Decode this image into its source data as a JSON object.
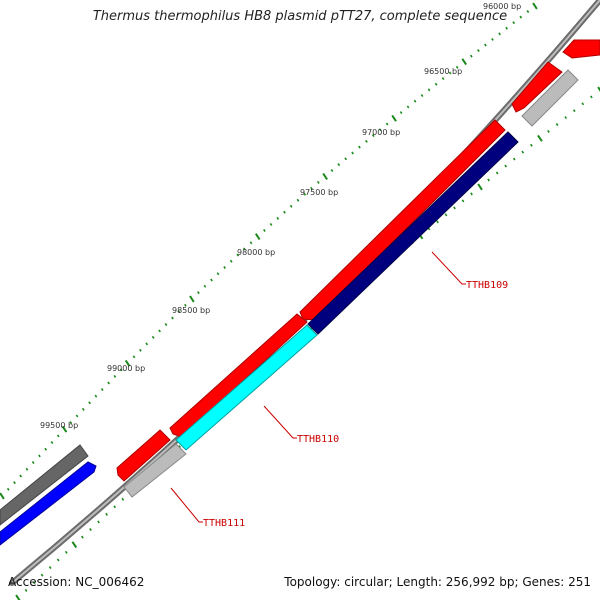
{
  "title": "Thermus thermophilus HB8 plasmid pTT27, complete sequence",
  "footer": {
    "accession": "Accession: NC_006462",
    "summary": "Topology: circular; Length: 256,992 bp; Genes: 251"
  },
  "ruler": {
    "labels": [
      "96000 bp",
      "96500 bp",
      "97000 bp",
      "97500 bp",
      "98000 bp",
      "98500 bp",
      "99000 bp",
      "99500 bp"
    ],
    "tick_color": "#1a8a1a"
  },
  "genes": [
    {
      "name": "TTHB109",
      "color": "#00007f"
    },
    {
      "name": "TTHB110",
      "color": "#00ffff"
    },
    {
      "name": "TTHB111",
      "color": "#bbbbbb"
    }
  ],
  "colors": {
    "backbone": "#888888",
    "forward_cds": "#ff0000",
    "grey_feature": "#bbbbbb",
    "dark_feature": "#666666",
    "blue_feature": "#0000ff",
    "gene_label": "#cc0000"
  }
}
